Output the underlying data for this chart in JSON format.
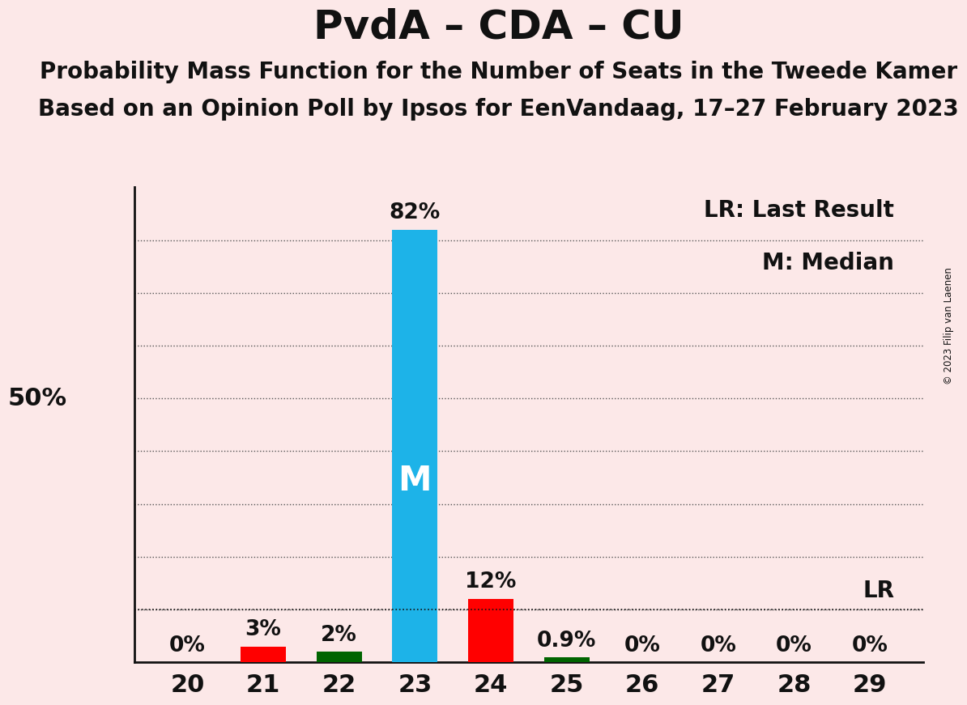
{
  "title": "PvdA – CDA – CU",
  "subtitle1": "Probability Mass Function for the Number of Seats in the Tweede Kamer",
  "subtitle2": "Based on an Opinion Poll by Ipsos for EenVandaag, 17–27 February 2023",
  "copyright": "© 2023 Filip van Laenen",
  "seats": [
    20,
    21,
    22,
    23,
    24,
    25,
    26,
    27,
    28,
    29
  ],
  "probabilities": [
    0.0,
    3.0,
    2.0,
    82.0,
    12.0,
    0.9,
    0.0,
    0.0,
    0.0,
    0.0
  ],
  "labels": [
    "0%",
    "3%",
    "2%",
    "82%",
    "12%",
    "0.9%",
    "0%",
    "0%",
    "0%",
    "0%"
  ],
  "bar_colors": [
    "#ff0000",
    "#ff0000",
    "#006400",
    "#1db3e8",
    "#ff0000",
    "#006400",
    "#ff0000",
    "#ff0000",
    "#ff0000",
    "#ff0000"
  ],
  "median_seat": 23,
  "last_result_seat": 29,
  "last_result_value": 10.0,
  "median_label": "M",
  "lr_label": "LR",
  "lr_legend": "LR: Last Result",
  "m_legend": "M: Median",
  "background_color": "#fce8e8",
  "plot_bg_color": "#fce8e8",
  "bar_width": 0.6,
  "ylim": [
    0,
    90
  ],
  "ylabel_50": "50%",
  "title_fontsize": 36,
  "subtitle_fontsize": 20,
  "label_fontsize": 19,
  "tick_fontsize": 22,
  "legend_fontsize": 20,
  "median_label_fontsize": 30,
  "dotted_line_color": "#555555"
}
